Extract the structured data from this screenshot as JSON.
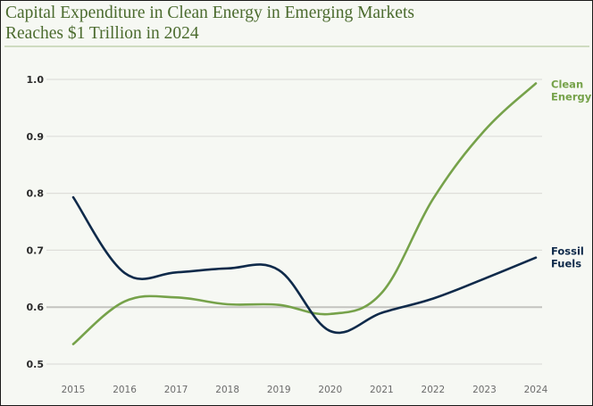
{
  "chart_data": {
    "type": "line",
    "title": "Capital Expenditure in Clean Energy in Emerging Markets Reaches $1 Trillion in 2024",
    "title_lines": [
      "Capital Expenditure in Clean Energy in Emerging Markets",
      "Reaches $1 Trillion in 2024"
    ],
    "xlabel": "",
    "ylabel": "",
    "x": [
      "2015",
      "2016",
      "2017",
      "2018",
      "2019",
      "2020",
      "2021",
      "2022",
      "2023",
      "2024"
    ],
    "yticks": [
      "0.5",
      "0.6",
      "0.7",
      "0.8",
      "0.9",
      "1.0"
    ],
    "ylim": [
      0.5,
      1.0
    ],
    "grid": true,
    "legend": "inline-right",
    "series": [
      {
        "name": "Clean Energy",
        "label_lines": [
          "Clean",
          "Energy"
        ],
        "color": "#76a24a",
        "values": [
          0.535,
          0.61,
          0.617,
          0.605,
          0.604,
          0.588,
          0.625,
          0.79,
          0.91,
          0.993
        ]
      },
      {
        "name": "Fossil Fuels",
        "label_lines": [
          "Fossil",
          "Fuels"
        ],
        "color": "#0f2a4a",
        "values": [
          0.793,
          0.66,
          0.661,
          0.668,
          0.665,
          0.558,
          0.59,
          0.615,
          0.65,
          0.687
        ]
      }
    ]
  }
}
